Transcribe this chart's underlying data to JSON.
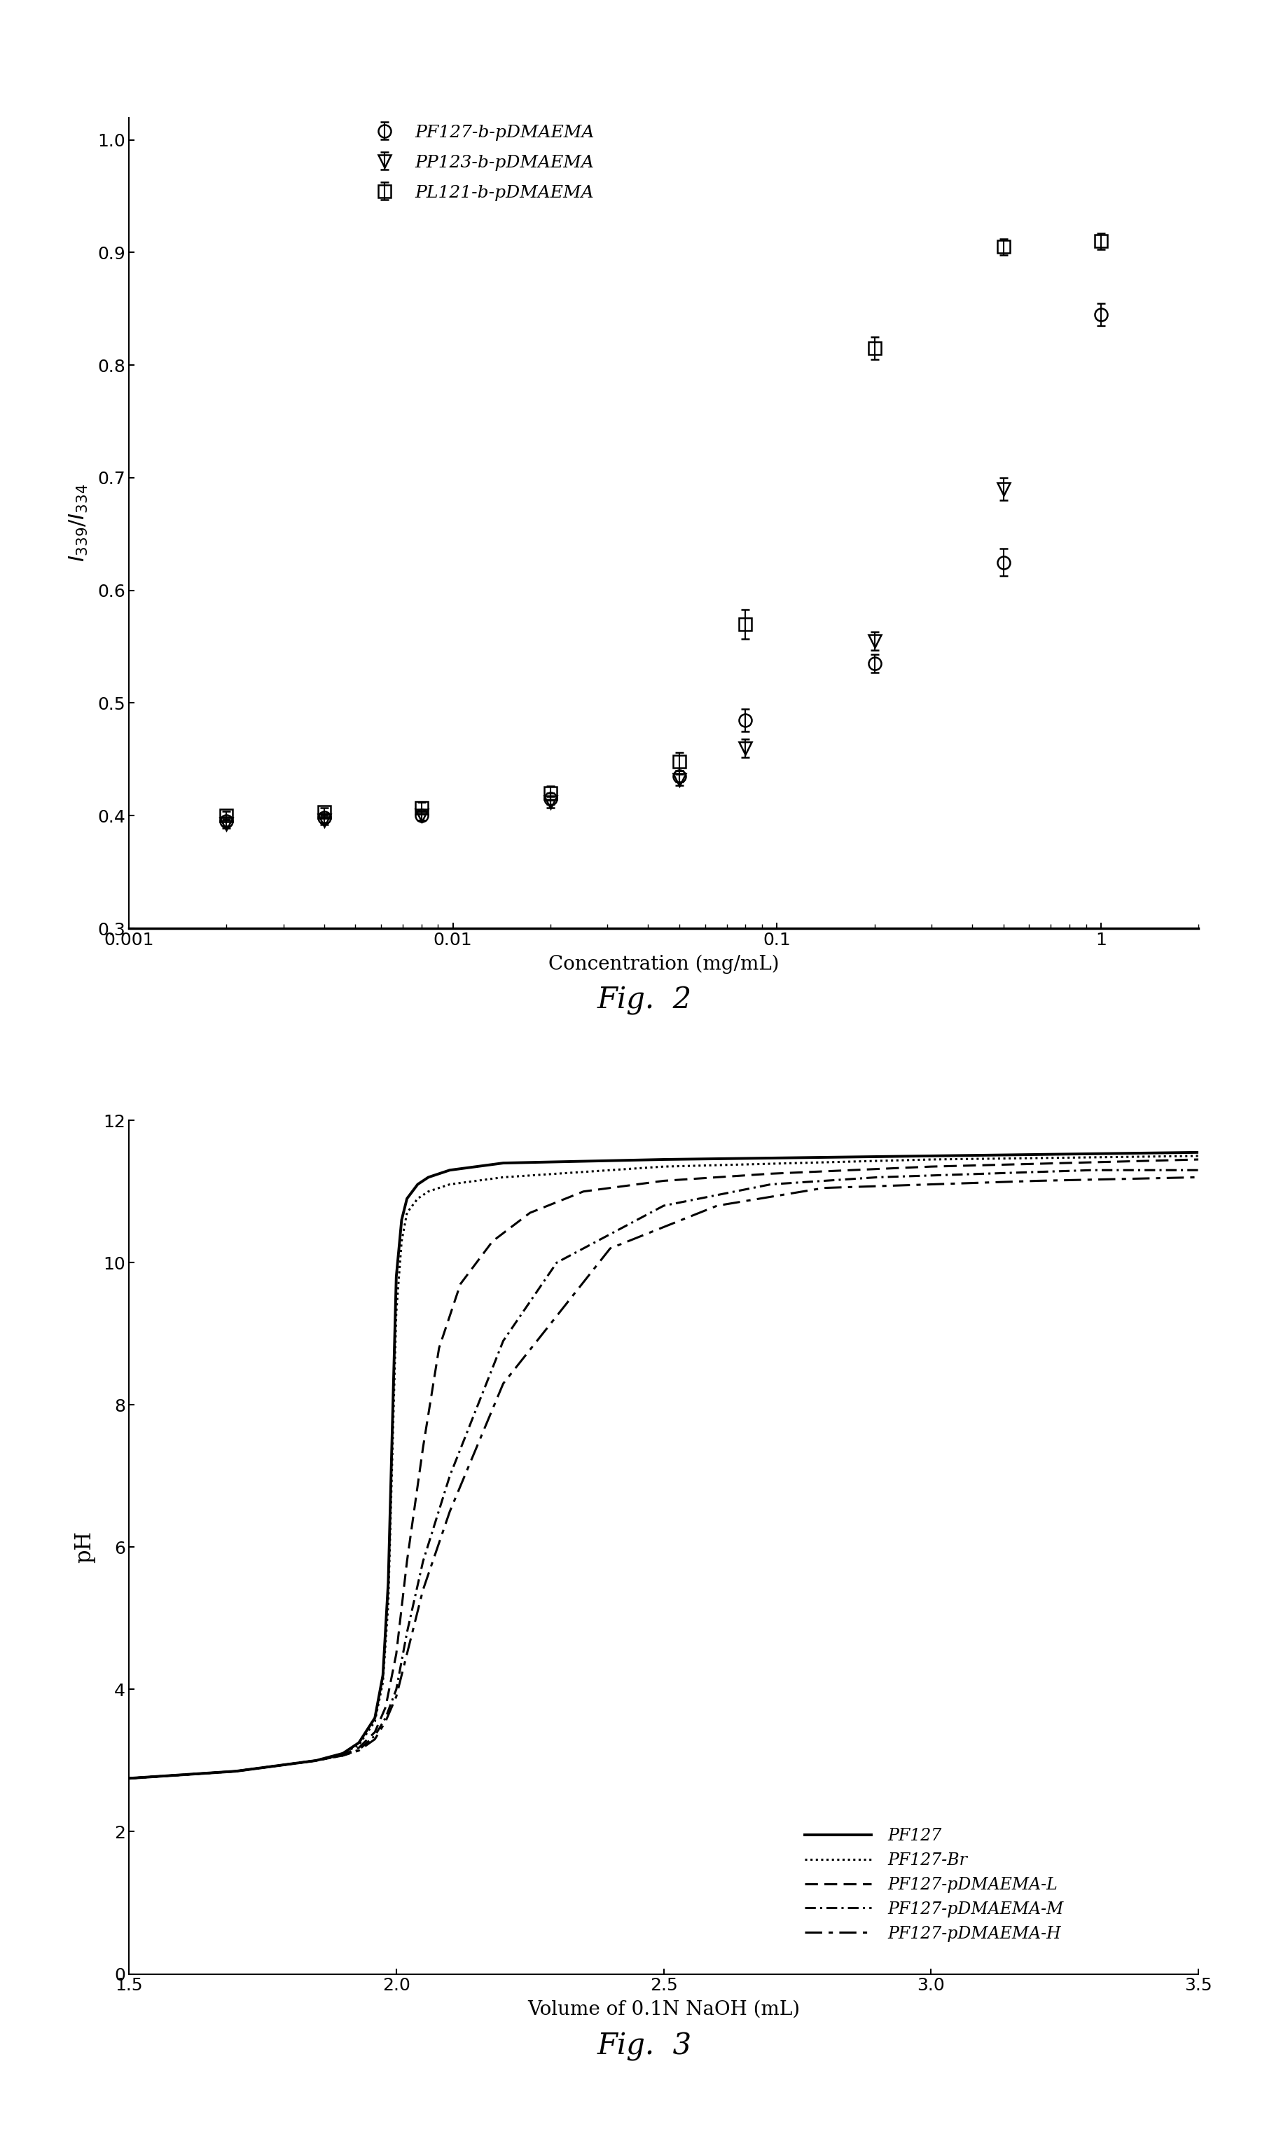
{
  "fig2": {
    "xlabel": "Concentration (mg/mL)",
    "ylabel": "I_339/I_334",
    "xlim": [
      0.001,
      2.0
    ],
    "ylim": [
      0.3,
      1.02
    ],
    "yticks": [
      0.3,
      0.4,
      0.5,
      0.6,
      0.7,
      0.8,
      0.9,
      1.0
    ],
    "caption": "Fig.  2",
    "series": [
      {
        "label": "PF127-b-pDMAEMA",
        "marker": "o",
        "x": [
          0.002,
          0.004,
          0.008,
          0.02,
          0.05,
          0.08,
          0.2,
          0.5,
          1.0
        ],
        "y": [
          0.395,
          0.398,
          0.4,
          0.415,
          0.435,
          0.485,
          0.535,
          0.625,
          0.845
        ],
        "yerr": [
          0.004,
          0.004,
          0.004,
          0.005,
          0.005,
          0.01,
          0.008,
          0.012,
          0.01
        ]
      },
      {
        "label": "PP123-b-pDMAEMA",
        "marker": "v",
        "x": [
          0.002,
          0.004,
          0.008,
          0.02,
          0.05,
          0.08,
          0.2,
          0.5
        ],
        "y": [
          0.393,
          0.396,
          0.4,
          0.412,
          0.432,
          0.46,
          0.555,
          0.69
        ],
        "yerr": [
          0.004,
          0.004,
          0.004,
          0.005,
          0.005,
          0.008,
          0.008,
          0.01
        ]
      },
      {
        "label": "PL121-b-pDMAEMA",
        "marker": "s",
        "x": [
          0.002,
          0.004,
          0.008,
          0.02,
          0.05,
          0.08,
          0.2,
          0.5,
          1.0
        ],
        "y": [
          0.4,
          0.403,
          0.407,
          0.42,
          0.448,
          0.57,
          0.815,
          0.905,
          0.91
        ],
        "yerr": [
          0.004,
          0.004,
          0.005,
          0.006,
          0.008,
          0.013,
          0.01,
          0.007,
          0.007
        ]
      }
    ]
  },
  "fig3": {
    "xlabel": "Volume of 0.1N NaOH (mL)",
    "ylabel": "pH",
    "xlim": [
      1.5,
      3.5
    ],
    "ylim": [
      0,
      12
    ],
    "yticks": [
      0,
      2,
      4,
      6,
      8,
      10,
      12
    ],
    "xticks": [
      1.5,
      2.0,
      2.5,
      3.0,
      3.5
    ],
    "caption": "Fig.  3",
    "series": [
      {
        "label": "PF127",
        "linestyle": "solid",
        "linewidth": 2.8,
        "x": [
          1.5,
          1.6,
          1.7,
          1.8,
          1.85,
          1.9,
          1.93,
          1.96,
          1.975,
          1.985,
          2.0,
          2.01,
          2.02,
          2.04,
          2.06,
          2.1,
          2.2,
          2.5,
          3.0,
          3.5
        ],
        "y": [
          2.75,
          2.8,
          2.85,
          2.95,
          3.0,
          3.1,
          3.25,
          3.6,
          4.2,
          5.5,
          9.8,
          10.6,
          10.9,
          11.1,
          11.2,
          11.3,
          11.4,
          11.45,
          11.5,
          11.55
        ]
      },
      {
        "label": "PF127-Br",
        "linestyle": "dotted",
        "linewidth": 2.2,
        "x": [
          1.5,
          1.6,
          1.7,
          1.8,
          1.85,
          1.9,
          1.93,
          1.96,
          1.975,
          1.985,
          2.0,
          2.01,
          2.02,
          2.04,
          2.06,
          2.1,
          2.2,
          2.5,
          3.0,
          3.5
        ],
        "y": [
          2.75,
          2.8,
          2.85,
          2.95,
          3.0,
          3.1,
          3.22,
          3.55,
          4.1,
          5.2,
          9.3,
          10.3,
          10.7,
          10.9,
          11.0,
          11.1,
          11.2,
          11.35,
          11.45,
          11.5
        ]
      },
      {
        "label": "PF127-pDMAEMA-L",
        "linestyle": "dashed",
        "linewidth": 2.2,
        "x": [
          1.5,
          1.6,
          1.7,
          1.8,
          1.85,
          1.9,
          1.93,
          1.96,
          1.98,
          2.0,
          2.02,
          2.05,
          2.08,
          2.12,
          2.18,
          2.25,
          2.35,
          2.5,
          2.7,
          3.0,
          3.5
        ],
        "y": [
          2.75,
          2.8,
          2.85,
          2.95,
          3.0,
          3.08,
          3.18,
          3.4,
          3.75,
          4.5,
          5.8,
          7.4,
          8.8,
          9.7,
          10.3,
          10.7,
          11.0,
          11.15,
          11.25,
          11.35,
          11.45
        ]
      },
      {
        "label": "PF127-pDMAEMA-M",
        "linestyle": "dashdot",
        "linewidth": 2.2,
        "x": [
          1.5,
          1.6,
          1.7,
          1.8,
          1.85,
          1.9,
          1.93,
          1.96,
          1.98,
          2.0,
          2.02,
          2.05,
          2.1,
          2.2,
          2.3,
          2.5,
          2.7,
          2.9,
          3.1,
          3.3,
          3.5
        ],
        "y": [
          2.75,
          2.8,
          2.85,
          2.95,
          3.0,
          3.07,
          3.15,
          3.35,
          3.6,
          4.0,
          4.8,
          5.8,
          7.0,
          8.9,
          10.0,
          10.8,
          11.1,
          11.2,
          11.25,
          11.3,
          11.3
        ]
      },
      {
        "label": "PF127-pDMAEMA-H",
        "linestyle": "longdashdot",
        "linewidth": 2.2,
        "x": [
          1.5,
          1.6,
          1.7,
          1.8,
          1.85,
          1.9,
          1.93,
          1.96,
          1.98,
          2.0,
          2.02,
          2.05,
          2.1,
          2.2,
          2.4,
          2.6,
          2.8,
          3.0,
          3.2,
          3.5
        ],
        "y": [
          2.75,
          2.8,
          2.85,
          2.95,
          3.0,
          3.07,
          3.14,
          3.3,
          3.55,
          3.9,
          4.5,
          5.4,
          6.5,
          8.3,
          10.2,
          10.8,
          11.05,
          11.1,
          11.15,
          11.2
        ]
      }
    ]
  }
}
